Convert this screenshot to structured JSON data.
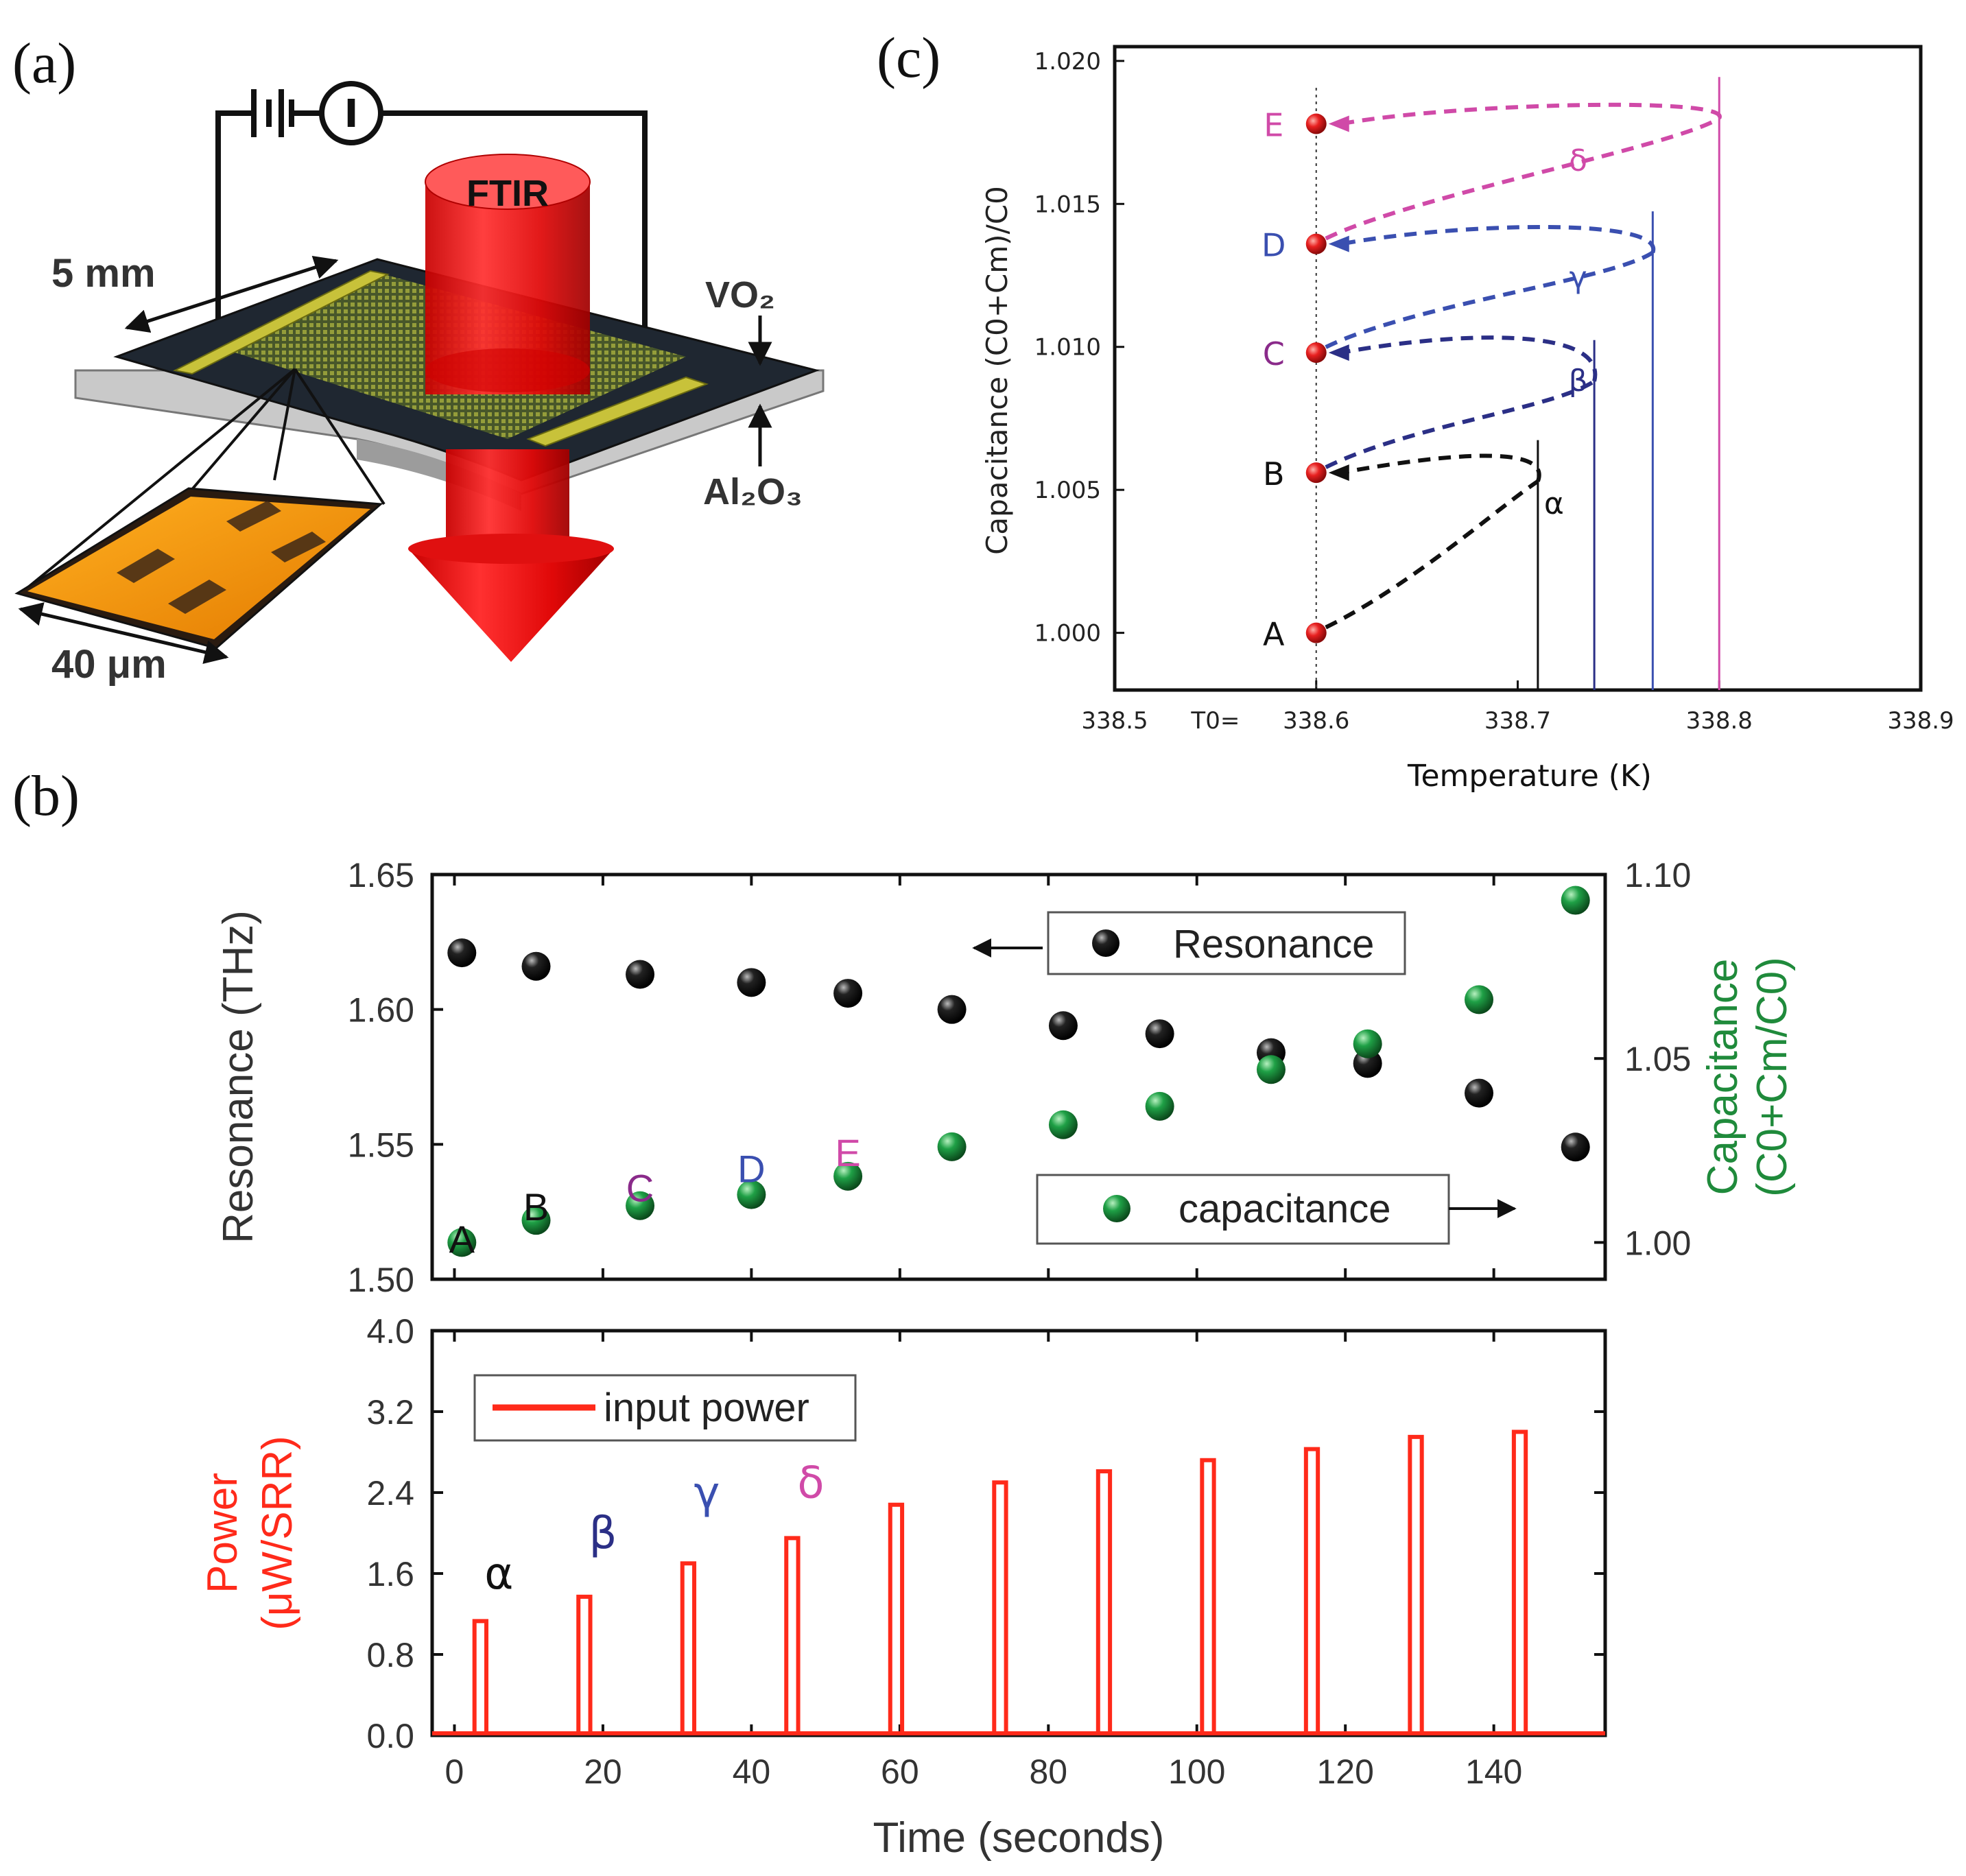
{
  "panels": {
    "a": {
      "label": "(a)",
      "ftir": "FTIR",
      "width_label": "5 mm",
      "cell_label": "40 μm",
      "vo2_label": "VO₂",
      "al2o3_label": "Al₂O₃",
      "meter_symbol": "I"
    },
    "b": {
      "label": "(b)"
    },
    "c": {
      "label": "(c)"
    }
  },
  "colors": {
    "alpha": "#111111",
    "beta": "#2b2f86",
    "gamma": "#3a4fb0",
    "delta": "#d04aa8",
    "resonance": "#111111",
    "capacitance": "#1f8a3b",
    "power": "#ff2a1a",
    "marker": "#e82020"
  },
  "chart_data": [
    {
      "id": "c",
      "type": "line",
      "title": "",
      "xlabel": "Temperature (K)",
      "ylabel": "Capacitance   (C0+Cm)/C0",
      "xlim": [
        338.5,
        338.9
      ],
      "ylim": [
        0.998,
        1.0205
      ],
      "x_ticks": [
        "338.5",
        "338.6",
        "338.7",
        "338.8",
        "338.9"
      ],
      "y_ticks": [
        "1.000",
        "1.005",
        "1.010",
        "1.015",
        "1.020"
      ],
      "t0_label": "T0=",
      "points": [
        {
          "label": "A",
          "x": 338.6,
          "y": 1.0,
          "color": "#111111"
        },
        {
          "label": "B",
          "x": 338.6,
          "y": 1.0056,
          "color": "#111111"
        },
        {
          "label": "C",
          "x": 338.6,
          "y": 1.0098,
          "color": "#8a2a8a"
        },
        {
          "label": "D",
          "x": 338.6,
          "y": 1.0136,
          "color": "#3a4fb0"
        },
        {
          "label": "E",
          "x": 338.6,
          "y": 1.0178,
          "color": "#d04aa8"
        }
      ],
      "series": [
        {
          "name": "α",
          "color": "#111111",
          "x_turn": 338.71,
          "y_start": 1.0,
          "y_turn": 1.0053,
          "y_end": 1.0056,
          "label_x": 338.718,
          "label_y": 1.0045
        },
        {
          "name": "β",
          "color": "#2b2f86",
          "x_turn": 338.738,
          "y_start": 1.0056,
          "y_turn": 1.0088,
          "y_end": 1.0098,
          "label_x": 338.73,
          "label_y": 1.0088
        },
        {
          "name": "γ",
          "color": "#3a4fb0",
          "x_turn": 338.767,
          "y_start": 1.0098,
          "y_turn": 1.0133,
          "y_end": 1.0136,
          "label_x": 338.73,
          "label_y": 1.0124
        },
        {
          "name": "δ",
          "color": "#d04aa8",
          "x_turn": 338.8,
          "y_start": 1.0136,
          "y_turn": 1.018,
          "y_end": 1.0178,
          "label_x": 338.73,
          "label_y": 1.0165
        }
      ]
    },
    {
      "id": "b-top",
      "type": "scatter",
      "title": "",
      "xlabel": "",
      "ylabel": "Resonance (THz)",
      "ylabel_right": "Capacitance",
      "ylabel_right2": "(C0+Cm/C0)",
      "xlim": [
        -3,
        155
      ],
      "ylim": [
        1.5,
        1.65
      ],
      "ylim_right": [
        0.99,
        1.1
      ],
      "y_ticks": [
        "1.50",
        "1.55",
        "1.60",
        "1.65"
      ],
      "y_ticks_right": [
        "1.00",
        "1.05",
        "1.10"
      ],
      "series": [
        {
          "name": "Resonance",
          "axis": "left",
          "color": "#111111",
          "x": [
            1,
            11,
            25,
            40,
            53,
            67,
            82,
            95,
            110,
            123,
            138,
            151
          ],
          "y": [
            1.621,
            1.616,
            1.613,
            1.61,
            1.606,
            1.6,
            1.594,
            1.591,
            1.584,
            1.58,
            1.569,
            1.549
          ]
        },
        {
          "name": "capacitance",
          "axis": "right",
          "color": "#1f8a3b",
          "x": [
            1,
            11,
            25,
            40,
            53,
            67,
            82,
            95,
            110,
            123,
            138,
            151
          ],
          "y": [
            1.0,
            1.006,
            1.01,
            1.013,
            1.018,
            1.026,
            1.032,
            1.037,
            1.047,
            1.054,
            1.066,
            1.093
          ]
        }
      ],
      "point_labels": [
        {
          "text": "A",
          "x": 1,
          "y": 1.515,
          "color": "#111111"
        },
        {
          "text": "B",
          "x": 11,
          "y": 1.527,
          "color": "#111111"
        },
        {
          "text": "C",
          "x": 25,
          "y": 1.534,
          "color": "#8a2a8a"
        },
        {
          "text": "D",
          "x": 40,
          "y": 1.541,
          "color": "#3a4fb0"
        },
        {
          "text": "E",
          "x": 53,
          "y": 1.547,
          "color": "#d04aa8"
        }
      ],
      "legend": [
        {
          "label": "Resonance",
          "color": "#111111",
          "arrow": "left"
        },
        {
          "label": "capacitance",
          "color": "#1f8a3b",
          "arrow": "right"
        }
      ]
    },
    {
      "id": "b-bottom",
      "type": "bar",
      "title": "",
      "xlabel": "Time (seconds)",
      "ylabel": "Power",
      "ylabel2": "(μW/SRR)",
      "xlim": [
        -3,
        155
      ],
      "ylim": [
        0.0,
        4.0
      ],
      "x_ticks": [
        "0",
        "20",
        "40",
        "60",
        "80",
        "100",
        "120",
        "140"
      ],
      "y_ticks": [
        "0.0",
        "0.8",
        "1.6",
        "2.4",
        "3.2",
        "4.0"
      ],
      "pulse_width": 1.6,
      "series": [
        {
          "name": "input power",
          "color": "#ff2a1a",
          "x": [
            3.5,
            17.5,
            31.5,
            45.5,
            59.5,
            73.5,
            87.5,
            101.5,
            115.5,
            129.5,
            143.5
          ],
          "y": [
            1.13,
            1.37,
            1.7,
            1.95,
            2.28,
            2.5,
            2.61,
            2.72,
            2.83,
            2.95,
            3.0
          ]
        }
      ],
      "annotations": [
        {
          "text": "α",
          "x": 6,
          "y": 1.45,
          "color": "#111111"
        },
        {
          "text": "β",
          "x": 20,
          "y": 1.85,
          "color": "#2b2f86"
        },
        {
          "text": "γ",
          "x": 34,
          "y": 2.25,
          "color": "#3a4fb0"
        },
        {
          "text": "δ",
          "x": 48,
          "y": 2.35,
          "color": "#d04aa8"
        }
      ],
      "legend": [
        {
          "label": "input power",
          "color": "#ff2a1a"
        }
      ]
    }
  ]
}
